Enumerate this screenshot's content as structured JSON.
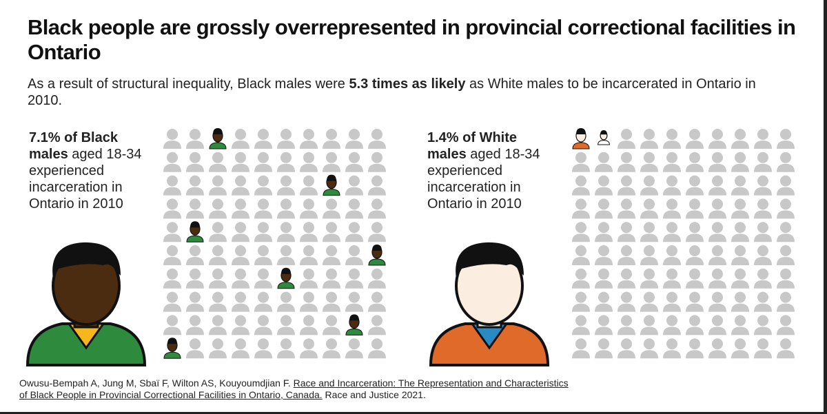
{
  "header": {
    "title": "Black people are grossly overrepresented in provincial correctional facilities in Ontario",
    "subtitle": {
      "before": "As a result of structural inequality, Black males were ",
      "bold": "5.3 times as likely",
      "after": " as White males to be incarcerated in Ontario in 2010."
    }
  },
  "panels": [
    {
      "bold": "7.1% of Black males",
      "rest": " aged 18-34 experienced incarceration in Ontario in 2010"
    },
    {
      "bold": "1.4% of White males",
      "rest": " aged 18-34 experienced incarceration in Ontario in 2010"
    }
  ],
  "source": {
    "authors": "Owusu-Bempah A, Jung M, Sbaï F, Wilton AS, Kouyoumdjian F. ",
    "link": "Race and Incarceration: The Representation and Characteristics of Black People in Provincial Correctional Facilities in Ontario, Canada.",
    "journal": " Race and Justice 2021."
  }
}
